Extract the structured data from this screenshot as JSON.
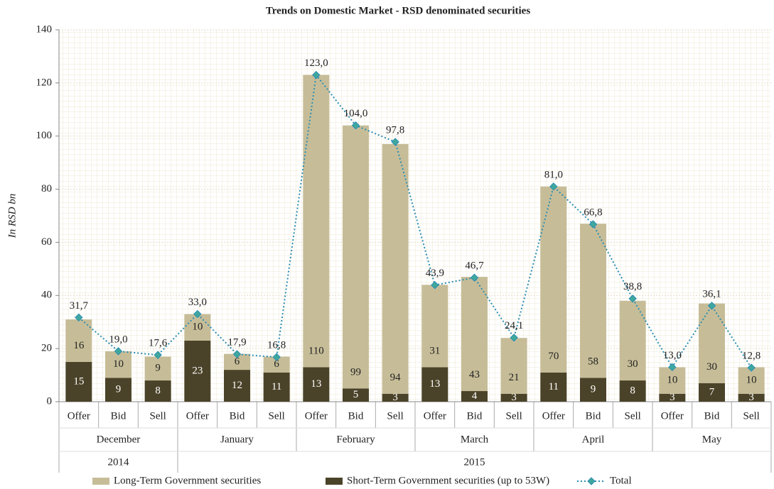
{
  "chart_data": {
    "type": "bar",
    "stacked": true,
    "title": "Trends on Domestic Market - RSD denominated securities",
    "y_label": "In RSD bn",
    "groups": [
      {
        "year": "2014",
        "months": [
          {
            "month": "December",
            "categories": [
              "Offer",
              "Bid",
              "Sell"
            ]
          }
        ]
      },
      {
        "year": "2015",
        "months": [
          {
            "month": "January",
            "categories": [
              "Offer",
              "Bid",
              "Sell"
            ]
          },
          {
            "month": "February",
            "categories": [
              "Offer",
              "Bid",
              "Sell"
            ]
          },
          {
            "month": "March",
            "categories": [
              "Offer",
              "Bid",
              "Sell"
            ]
          },
          {
            "month": "April",
            "categories": [
              "Offer",
              "Bid",
              "Sell"
            ]
          },
          {
            "month": "May",
            "categories": [
              "Offer",
              "Bid",
              "Sell"
            ]
          }
        ]
      }
    ],
    "series": [
      {
        "name": "Short-Term Government securities (up to 53W)",
        "type": "bar",
        "color": "#4b4329",
        "values": [
          15,
          9,
          8,
          23,
          12,
          11,
          13,
          5,
          3,
          13,
          4,
          3,
          11,
          9,
          8,
          3,
          7,
          3
        ]
      },
      {
        "name": "Long-Term Government securities",
        "type": "bar",
        "color": "#c6bd98",
        "values": [
          16,
          10,
          9,
          10,
          6,
          6,
          110,
          99,
          94,
          31,
          43,
          21,
          70,
          58,
          30,
          10,
          30,
          10
        ]
      },
      {
        "name": "Total",
        "type": "line",
        "color": "#2b8db3",
        "marker_color": "#3fa89c",
        "values": [
          31.7,
          19.0,
          17.6,
          33.0,
          17.9,
          16.8,
          123.0,
          104.0,
          97.8,
          43.9,
          46.7,
          24.1,
          81.0,
          66.8,
          38.8,
          13.0,
          36.1,
          12.8
        ],
        "value_labels": [
          "31,7",
          "19,0",
          "17,6",
          "33,0",
          "17,9",
          "16,8",
          "123,0",
          "104,0",
          "97,8",
          "43,9",
          "46,7",
          "24,1",
          "81,0",
          "66,8",
          "38,8",
          "13,0",
          "36,1",
          "12,8"
        ]
      }
    ],
    "ylim": [
      0,
      140
    ],
    "yticks": [
      0,
      20,
      40,
      60,
      80,
      100,
      120,
      140
    ],
    "grid": true,
    "legend": "bottom"
  }
}
